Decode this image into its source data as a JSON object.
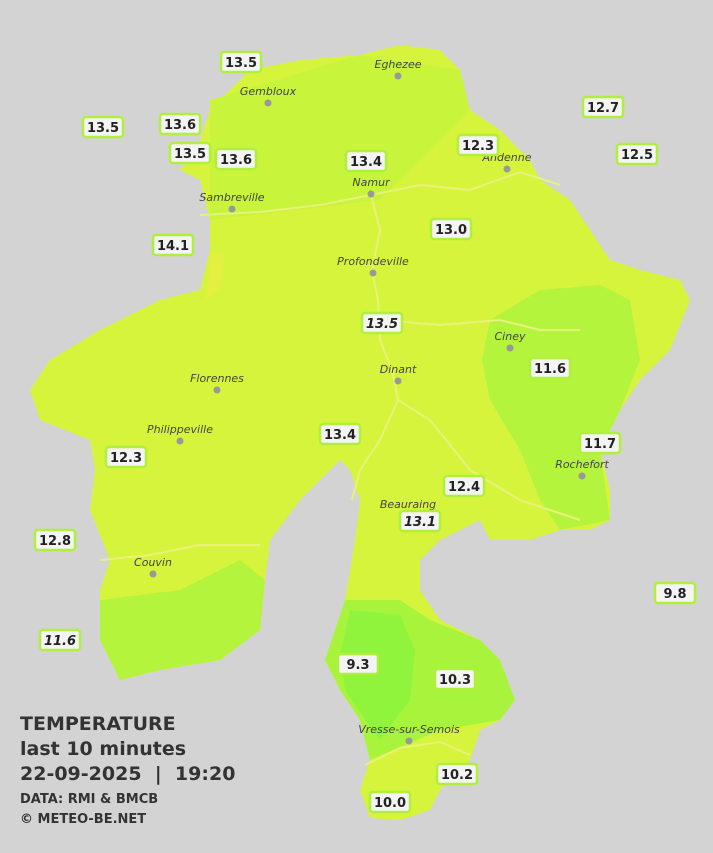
{
  "title": "TEMPERATURE",
  "subtitle": "last 10 minutes",
  "datetime": "22-09-2025  |  19:20",
  "source": "DATA: RMI & BMCB",
  "copyright": "© METEO-BE.NET",
  "cities": [
    "Eghezee",
    "Gembloux",
    "Andenne",
    "Namur",
    "Sambreville",
    "Profondeville",
    "Ciney",
    "Dinant",
    "Florennes",
    "Philippeville",
    "Rochefort",
    "Beauraing",
    "Couvin",
    "Vresse-sur-Semois"
  ],
  "stations": [
    {
      "label": "13.5"
    },
    {
      "label": "12.7"
    },
    {
      "label": "13.5"
    },
    {
      "label": "13.6"
    },
    {
      "label": "13.5"
    },
    {
      "label": "13.6"
    },
    {
      "label": "13.4"
    },
    {
      "label": "12.3"
    },
    {
      "label": "12.5"
    },
    {
      "label": "13.0"
    },
    {
      "label": "14.1"
    },
    {
      "label": "13.5",
      "italic": true
    },
    {
      "label": "11.6"
    },
    {
      "label": "13.4"
    },
    {
      "label": "11.7"
    },
    {
      "label": "12.3"
    },
    {
      "label": "12.4"
    },
    {
      "label": "13.1",
      "italic": true
    },
    {
      "label": "12.8"
    },
    {
      "label": "9.8"
    },
    {
      "label": "11.6",
      "italic": true
    },
    {
      "label": "9.3"
    },
    {
      "label": "10.3"
    },
    {
      "label": "10.2"
    },
    {
      "label": "10.0"
    }
  ]
}
